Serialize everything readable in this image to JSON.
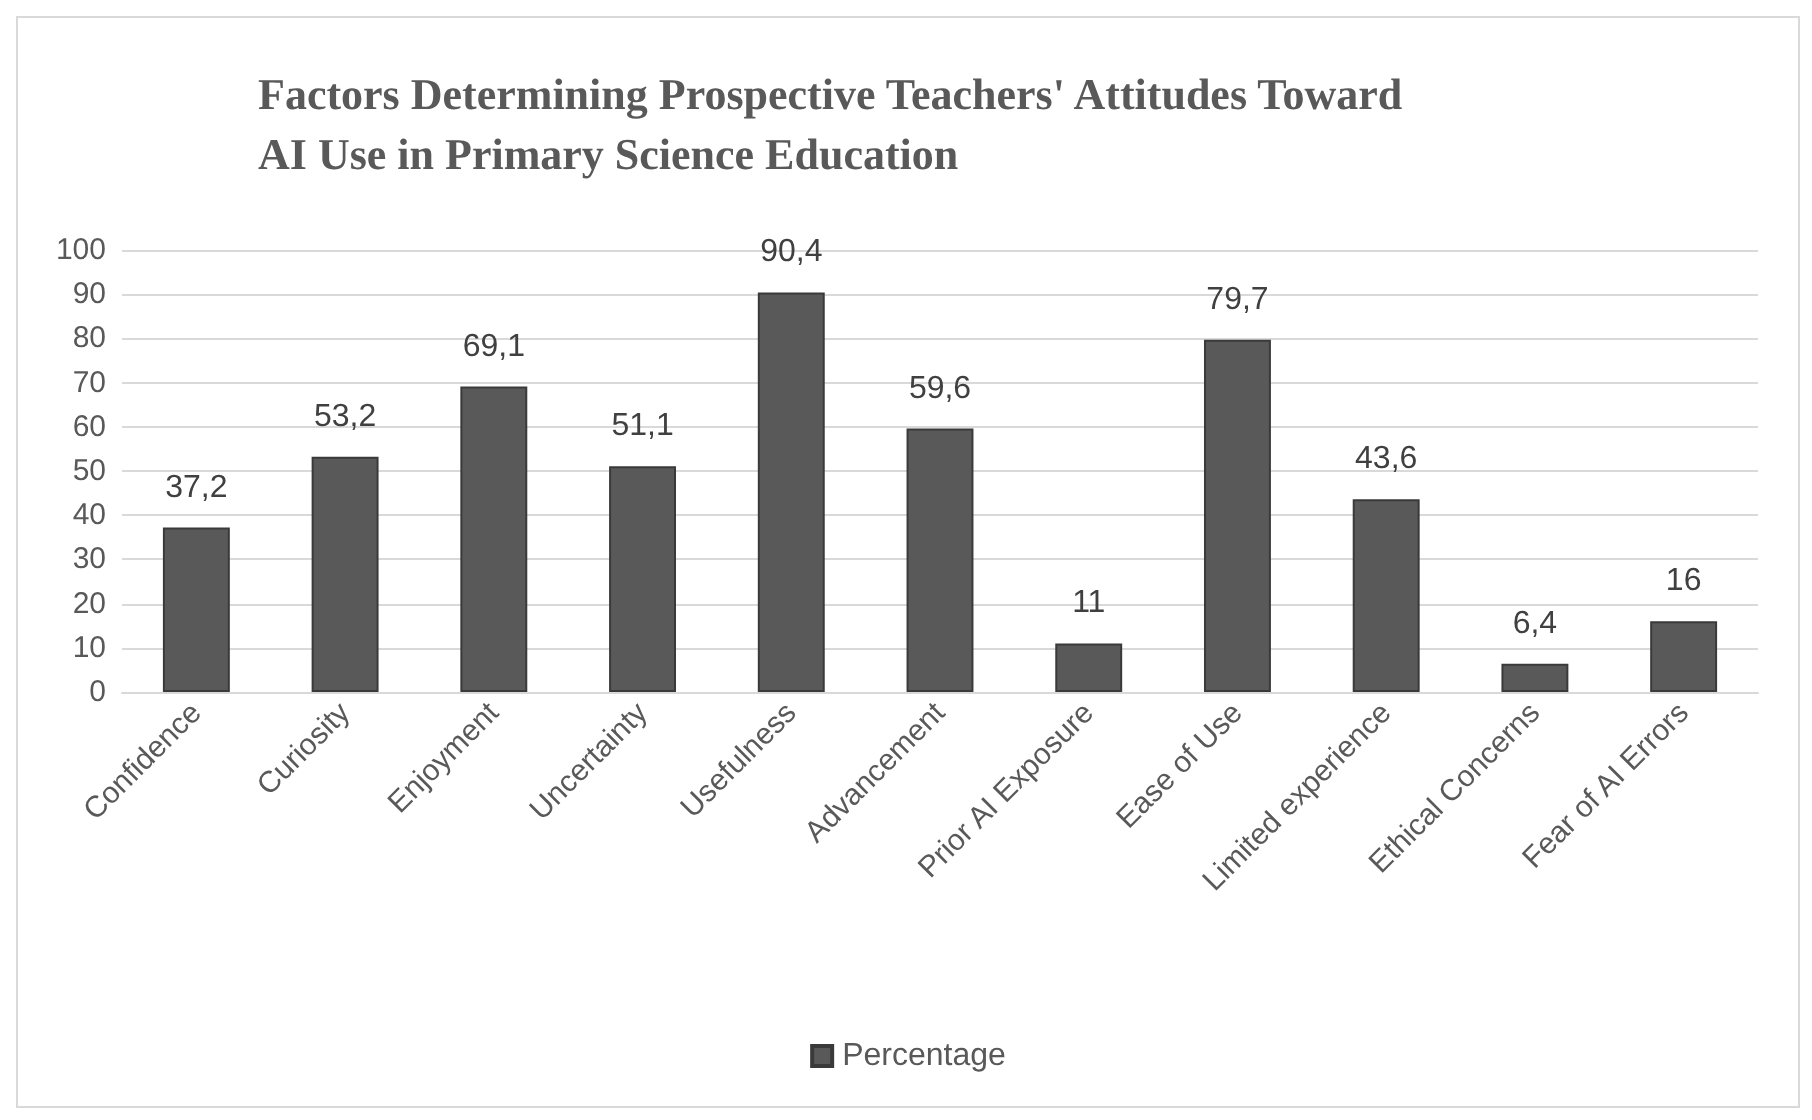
{
  "chart_data": {
    "type": "bar",
    "title": "Factors Determining Prospective Teachers' Attitudes Toward\nAI Use in Primary Science Education",
    "categories": [
      "Confidence",
      "Curiosity",
      "Enjoyment",
      "Uncertainty",
      "Usefulness",
      "Advancement",
      "Prior AI Exposure",
      "Ease of Use",
      "Limited experience",
      "Ethical Concerns",
      "Fear of AI Errors"
    ],
    "series": [
      {
        "name": "Percentage",
        "color": "#595959",
        "values": [
          37.2,
          53.2,
          69.1,
          51.1,
          90.4,
          59.6,
          11,
          79.7,
          43.6,
          6.4,
          16
        ],
        "value_labels": [
          "37,2",
          "53,2",
          "69,1",
          "51,1",
          "90,4",
          "59,6",
          "11",
          "79,7",
          "43,6",
          "6,4",
          "16"
        ]
      }
    ],
    "ylim": [
      0,
      100
    ],
    "yticks": [
      0,
      10,
      20,
      30,
      40,
      50,
      60,
      70,
      80,
      90,
      100
    ],
    "grid": "y",
    "legend": "bottom"
  }
}
